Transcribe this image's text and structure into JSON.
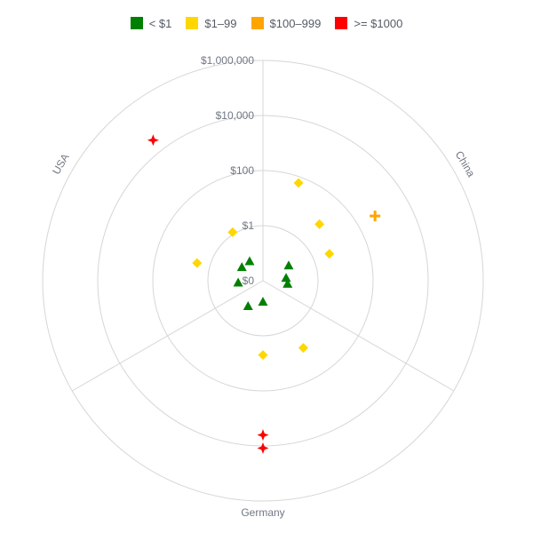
{
  "chart_data": {
    "type": "scatter",
    "subtype": "polar",
    "title": "",
    "angular_categories": [
      "China",
      "Germany",
      "USA"
    ],
    "radial_scale": "log",
    "radial_ticks": [
      "$0",
      "$1",
      "$100",
      "$10,000",
      "$1,000,000"
    ],
    "legend_position": "top-center",
    "grid": true,
    "series": [
      {
        "name": "< $1",
        "color": "#008000",
        "marker": "triangle-up",
        "points": [
          {
            "sector": "China",
            "angle_deg": 60,
            "value": 0.12
          },
          {
            "sector": "China",
            "angle_deg": 84,
            "value": 0.07
          },
          {
            "sector": "China",
            "angle_deg": 98,
            "value": 0.08
          },
          {
            "sector": "Germany",
            "angle_deg": 180,
            "value": 0.06
          },
          {
            "sector": "Germany",
            "angle_deg": 210,
            "value": 0.12
          },
          {
            "sector": "USA",
            "angle_deg": 265,
            "value": 0.08
          },
          {
            "sector": "USA",
            "angle_deg": 302,
            "value": 0.08
          },
          {
            "sector": "USA",
            "angle_deg": 325,
            "value": 0.07
          }
        ]
      },
      {
        "name": "$1–99",
        "color": "#ffd700",
        "marker": "diamond",
        "points": [
          {
            "sector": "China",
            "angle_deg": 20,
            "value": 60
          },
          {
            "sector": "China",
            "angle_deg": 45,
            "value": 8
          },
          {
            "sector": "China",
            "angle_deg": 68,
            "value": 4
          },
          {
            "sector": "Germany",
            "angle_deg": 149,
            "value": 7
          },
          {
            "sector": "Germany",
            "angle_deg": 180,
            "value": 5
          },
          {
            "sector": "USA",
            "angle_deg": 285,
            "value": 3
          },
          {
            "sector": "USA",
            "angle_deg": 328,
            "value": 1.2
          }
        ]
      },
      {
        "name": "$100–999",
        "color": "#ffa500",
        "marker": "cross",
        "points": [
          {
            "sector": "China",
            "angle_deg": 60,
            "value": 500
          }
        ]
      },
      {
        "name": ">= $1000",
        "color": "#ff0000",
        "marker": "star-diamond",
        "points": [
          {
            "sector": "Germany",
            "angle_deg": 180,
            "value": 4000
          },
          {
            "sector": "Germany",
            "angle_deg": 180,
            "value": 12000
          },
          {
            "sector": "USA",
            "angle_deg": 322,
            "value": 30000
          }
        ]
      }
    ]
  }
}
